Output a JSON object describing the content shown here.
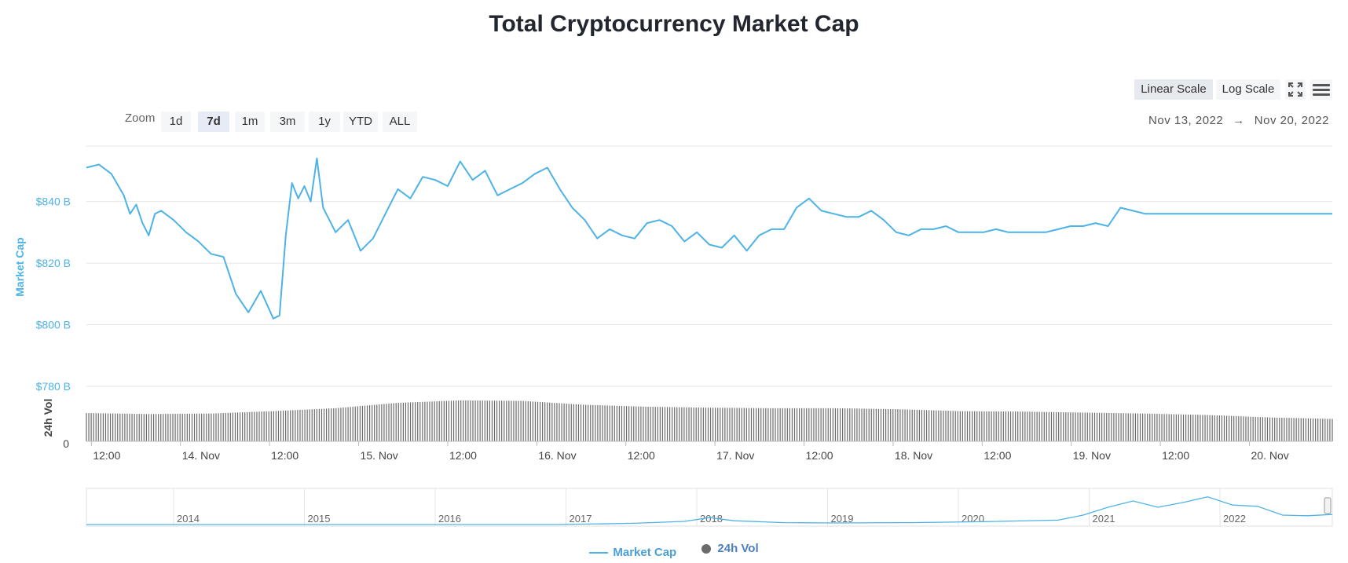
{
  "title": "Total Cryptocurrency Market Cap",
  "toolbar": {
    "zoom_label": "Zoom",
    "zoom_options": [
      "1d",
      "7d",
      "1m",
      "3m",
      "1y",
      "YTD",
      "ALL"
    ],
    "zoom_active": "7d",
    "linear_scale": "Linear Scale",
    "log_scale": "Log Scale",
    "scale_active": "Linear Scale",
    "date_from": "Nov 13, 2022",
    "date_arrow": "→",
    "date_to": "Nov 20, 2022"
  },
  "legend": {
    "market_cap": "Market Cap",
    "volume": "24h Vol"
  },
  "colors": {
    "market_cap": "#4db3e6",
    "volume": "#6b6b6b",
    "grid": "#e6e6e6"
  },
  "chart_data": {
    "type": "line",
    "title": "Total Cryptocurrency Market Cap",
    "ylabel": "Market Cap",
    "ylabel_volume": "24h Vol",
    "y_ticks": [
      "$780 B",
      "$800 B",
      "$820 B",
      "$840 B"
    ],
    "y_tick_values": [
      780,
      800,
      820,
      840
    ],
    "volume_zero_label": "0",
    "x_ticks": [
      "12:00",
      "14. Nov",
      "12:00",
      "15. Nov",
      "12:00",
      "16. Nov",
      "12:00",
      "17. Nov",
      "12:00",
      "18. Nov",
      "12:00",
      "19. Nov",
      "12:00",
      "20. Nov"
    ],
    "x_tick_values": [
      0.008,
      0.151,
      0.294,
      0.437,
      0.58,
      0.723,
      0.866,
      1.009,
      1.152,
      1.295,
      1.438,
      1.581,
      1.724,
      1.867
    ],
    "x_range": [
      0.0,
      2.0
    ],
    "ylim": [
      780,
      858
    ],
    "series": [
      {
        "name": "Market Cap",
        "x": [
          0.0,
          0.02,
          0.04,
          0.06,
          0.07,
          0.08,
          0.09,
          0.1,
          0.11,
          0.12,
          0.14,
          0.16,
          0.18,
          0.2,
          0.22,
          0.24,
          0.26,
          0.28,
          0.3,
          0.31,
          0.32,
          0.33,
          0.34,
          0.35,
          0.36,
          0.37,
          0.38,
          0.39,
          0.4,
          0.42,
          0.44,
          0.46,
          0.48,
          0.5,
          0.52,
          0.54,
          0.56,
          0.58,
          0.6,
          0.62,
          0.64,
          0.66,
          0.68,
          0.7,
          0.72,
          0.74,
          0.76,
          0.78,
          0.8,
          0.82,
          0.84,
          0.86,
          0.88,
          0.9,
          0.92,
          0.94,
          0.96,
          0.98,
          1.0,
          1.02,
          1.04,
          1.06,
          1.08,
          1.1,
          1.12,
          1.14,
          1.16,
          1.18,
          1.2,
          1.22,
          1.24,
          1.26,
          1.28,
          1.3,
          1.32,
          1.34,
          1.36,
          1.38,
          1.4,
          1.42,
          1.44,
          1.46,
          1.48,
          1.5,
          1.52,
          1.54,
          1.56,
          1.58,
          1.6,
          1.62,
          1.64,
          1.66,
          1.68,
          1.7,
          1.72,
          1.74,
          1.76,
          1.78,
          1.8,
          1.82,
          1.84,
          1.86,
          1.88,
          1.9,
          1.92,
          1.94,
          1.96,
          1.98,
          2.0
        ],
        "values": [
          851,
          852,
          849,
          842,
          836,
          839,
          833,
          829,
          836,
          837,
          834,
          830,
          827,
          823,
          822,
          810,
          804,
          811,
          802,
          803,
          829,
          846,
          841,
          845,
          840,
          854,
          838,
          834,
          830,
          834,
          824,
          828,
          836,
          844,
          841,
          848,
          847,
          845,
          853,
          847,
          850,
          842,
          844,
          846,
          849,
          851,
          844,
          838,
          834,
          828,
          831,
          829,
          828,
          833,
          834,
          832,
          827,
          830,
          826,
          825,
          829,
          824,
          829,
          831,
          831,
          838,
          841,
          837,
          836,
          835,
          835,
          837,
          834,
          830,
          829,
          831,
          831,
          832,
          830,
          830,
          830,
          831,
          830,
          830,
          830,
          830,
          831,
          832,
          832,
          833,
          832,
          838,
          837,
          836,
          836,
          836,
          836,
          836,
          836,
          836,
          836,
          836,
          836,
          836,
          836,
          836,
          836,
          836,
          836
        ]
      },
      {
        "name": "24h Vol",
        "x": [
          0.0,
          0.1,
          0.2,
          0.3,
          0.4,
          0.5,
          0.6,
          0.7,
          0.8,
          0.9,
          1.0,
          1.1,
          1.2,
          1.3,
          1.4,
          1.5,
          1.6,
          1.7,
          1.8,
          1.9,
          2.0
        ],
        "values": [
          0.58,
          0.56,
          0.57,
          0.62,
          0.68,
          0.79,
          0.84,
          0.83,
          0.75,
          0.71,
          0.69,
          0.68,
          0.68,
          0.66,
          0.62,
          0.61,
          0.59,
          0.57,
          0.54,
          0.49,
          0.46
        ]
      }
    ],
    "navigator": {
      "x_ticks": [
        "2014",
        "2015",
        "2016",
        "2017",
        "2018",
        "2019",
        "2020",
        "2021",
        "2022"
      ]
    },
    "grid": true,
    "legend_position": "bottom-center"
  }
}
